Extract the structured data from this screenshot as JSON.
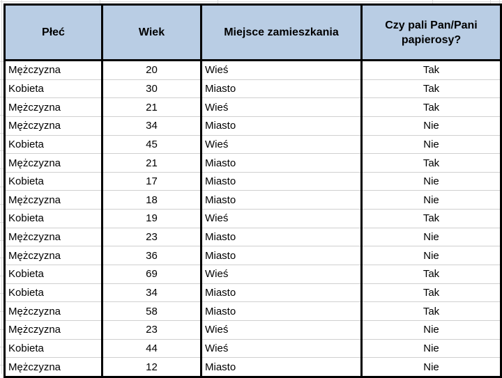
{
  "colors": {
    "header_bg": "#b9cde4",
    "table_border": "#000000",
    "row_divider": "#cfcfcf",
    "sheet_gridline": "#d9d9d9",
    "background": "#ffffff",
    "text": "#000000"
  },
  "table": {
    "columns": [
      {
        "label": "Płeć",
        "align": "left",
        "header_align": "center"
      },
      {
        "label": "Wiek",
        "align": "center",
        "header_align": "center"
      },
      {
        "label": "Miejsce zamieszkania",
        "align": "left",
        "header_align": "center"
      },
      {
        "label": "Czy pali Pan/Pani papierosy?",
        "align": "center",
        "header_align": "center"
      }
    ],
    "rows": [
      [
        "Mężczyzna",
        20,
        "Wieś",
        "Tak"
      ],
      [
        "Kobieta",
        30,
        "Miasto",
        "Tak"
      ],
      [
        "Mężczyzna",
        21,
        "Wieś",
        "Tak"
      ],
      [
        "Mężczyzna",
        34,
        "Miasto",
        "Nie"
      ],
      [
        "Kobieta",
        45,
        "Wieś",
        "Nie"
      ],
      [
        "Mężczyzna",
        21,
        "Miasto",
        "Tak"
      ],
      [
        "Kobieta",
        17,
        "Miasto",
        "Nie"
      ],
      [
        "Mężczyzna",
        18,
        "Miasto",
        "Nie"
      ],
      [
        "Kobieta",
        19,
        "Wieś",
        "Tak"
      ],
      [
        "Mężczyzna",
        23,
        "Miasto",
        "Nie"
      ],
      [
        "Mężczyzna",
        36,
        "Miasto",
        "Nie"
      ],
      [
        "Kobieta",
        69,
        "Wieś",
        "Tak"
      ],
      [
        "Kobieta",
        34,
        "Miasto",
        "Tak"
      ],
      [
        "Mężczyzna",
        58,
        "Miasto",
        "Tak"
      ],
      [
        "Mężczyzna",
        23,
        "Wieś",
        "Nie"
      ],
      [
        "Kobieta",
        44,
        "Wieś",
        "Nie"
      ],
      [
        "Mężczyzna",
        12,
        "Miasto",
        "Nie"
      ]
    ]
  }
}
